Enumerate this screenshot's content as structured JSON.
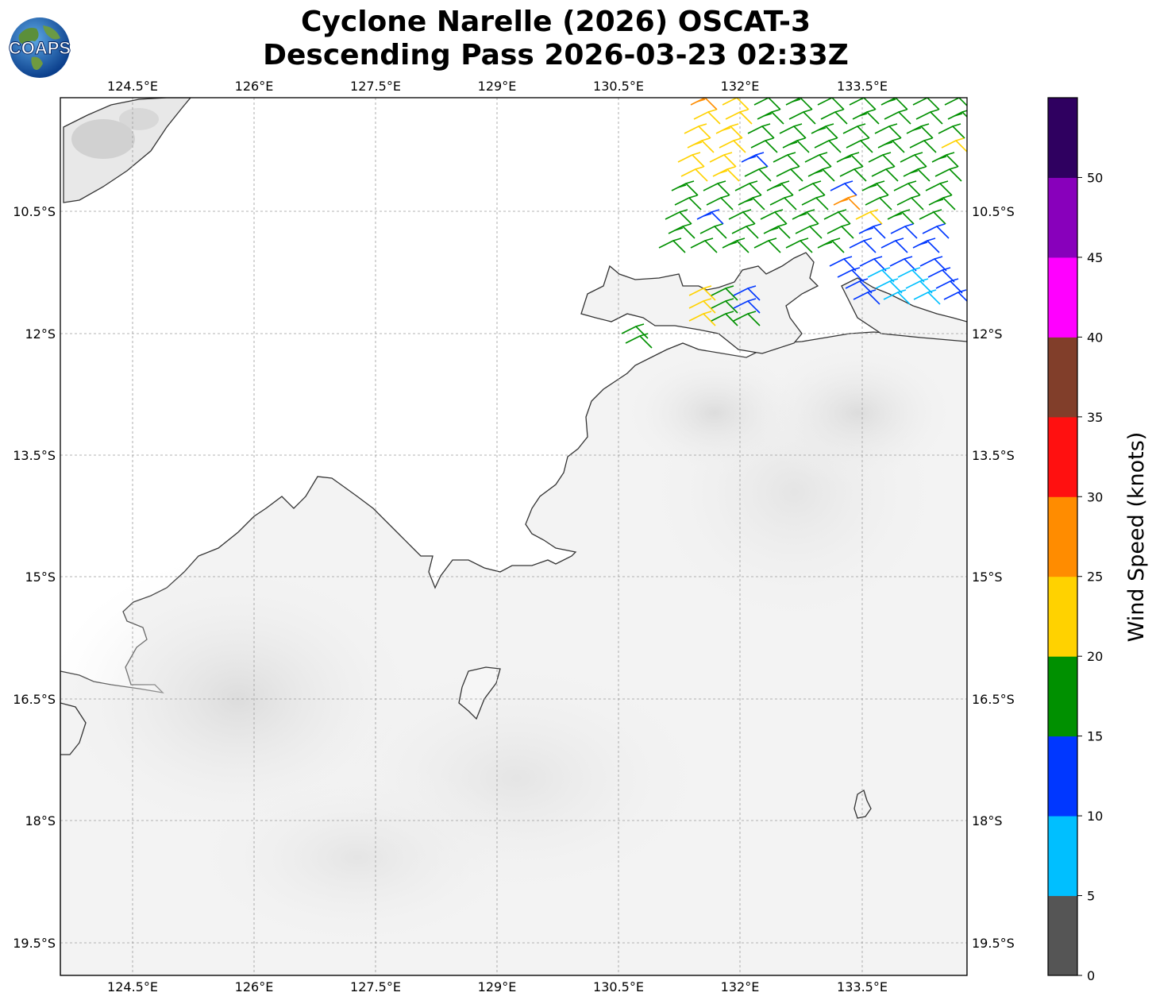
{
  "header": {
    "title_line1": "Cyclone Narelle (2026) OSCAT-3",
    "title_line2": "Descending Pass 2026-03-23 02:33Z",
    "logo_text": "COAPS"
  },
  "map": {
    "lon_ticks": [
      "124.5°E",
      "126°E",
      "127.5°E",
      "129°E",
      "130.5°E",
      "132°E",
      "133.5°E"
    ],
    "lat_ticks": [
      "10.5°S",
      "12°S",
      "13.5°S",
      "15°S",
      "16.5°S",
      "18°S",
      "19.5°S"
    ],
    "lon_range": [
      123.6,
      134.75
    ],
    "lat_range": [
      -9.1,
      -19.9
    ]
  },
  "colorbar": {
    "label": "Wind Speed (knots)",
    "tick_labels": [
      "0",
      "5",
      "10",
      "15",
      "20",
      "25",
      "30",
      "35",
      "40",
      "45",
      "50"
    ],
    "colors": [
      "#555555",
      "#00bfff",
      "#0037ff",
      "#009000",
      "#ffd200",
      "#ff8c00",
      "#ff1010",
      "#813e2a",
      "#ff00ff",
      "#8800bb",
      "#2f0060"
    ]
  },
  "wind_barb_colors": {
    "5-10": "#00bfff",
    "10-15": "#0037ff",
    "15-20": "#009000",
    "20-25": "#ffd200",
    "25-30": "#ff8c00"
  }
}
